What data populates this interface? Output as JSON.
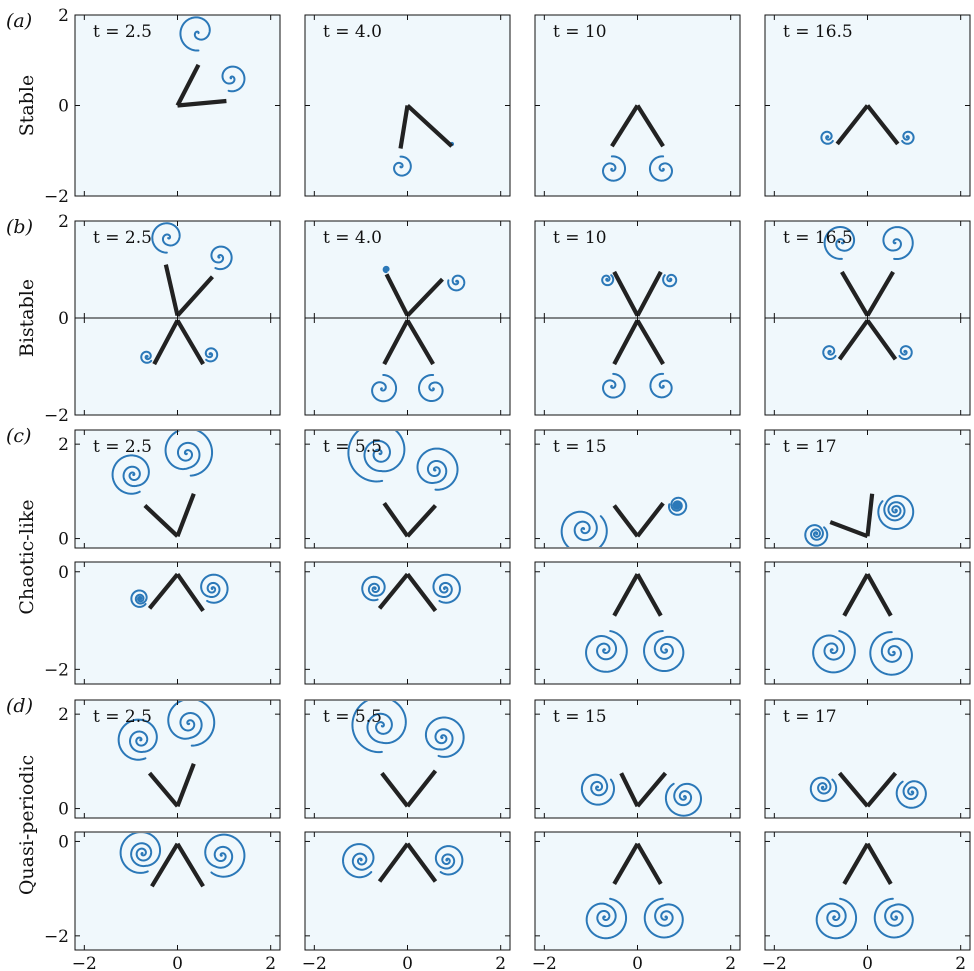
{
  "panels": [
    {
      "label": "(a)",
      "regime": "Stable"
    },
    {
      "label": "(b)",
      "regime": "Bistable"
    },
    {
      "label": "(c)",
      "regime": "Chaotic-like"
    },
    {
      "label": "(d)",
      "regime": "Quasi-periodic"
    }
  ],
  "times": [
    [
      "t = 2.5",
      "t = 4.0",
      "t = 10",
      "t = 16.5"
    ],
    [
      "t = 2.5",
      "t = 4.0",
      "t = 10",
      "t = 16.5"
    ],
    [
      "t = 2.5",
      "t = 5.5",
      "t = 15",
      "t = 17"
    ],
    [
      "t = 2.5",
      "t = 5.5",
      "t = 15",
      "t = 17"
    ]
  ],
  "x_ticks": [
    "−2",
    "0",
    "2"
  ],
  "y_ticks_a": [
    "2",
    "0",
    "−2"
  ],
  "y_ticks_b": [
    "2",
    "0",
    "−2"
  ],
  "y_ticks_c_top": [
    "2",
    "0"
  ],
  "y_ticks_c_bottom": [
    "0",
    "−2"
  ],
  "y_ticks_d_top": [
    "2",
    "0"
  ],
  "y_ticks_d_bottom": [
    "0",
    "−2"
  ],
  "colors": {
    "vortex_sheet": "#2b78b8",
    "plates": "#222222",
    "background": "#f0f8fc"
  }
}
